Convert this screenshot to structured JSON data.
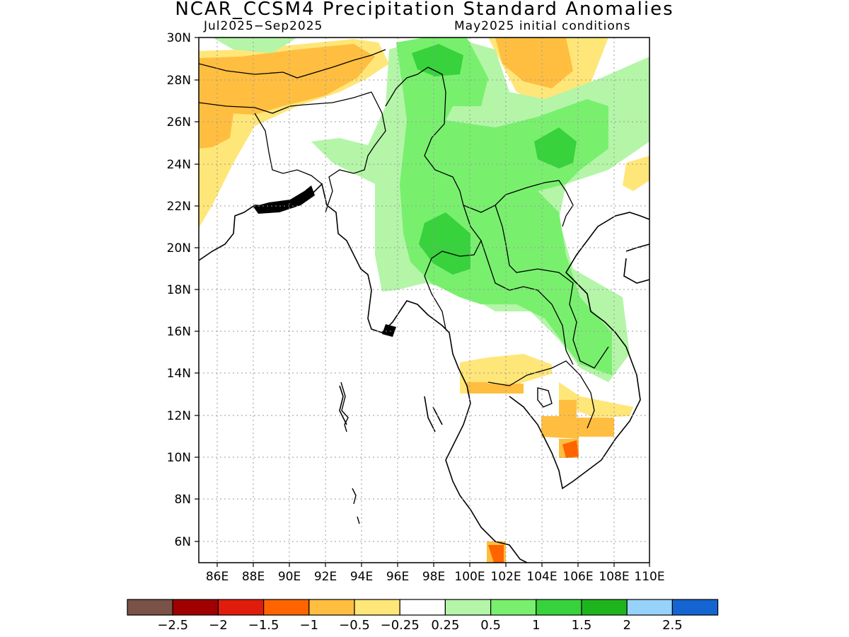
{
  "title": "NCAR_CCSM4 Precipitation Standard Anomalies",
  "subtitle_left": "Jul2025−Sep2025",
  "subtitle_right": "May2025 initial conditions",
  "axes": {
    "lon_labels": [
      "86E",
      "88E",
      "90E",
      "92E",
      "94E",
      "96E",
      "98E",
      "100E",
      "102E",
      "104E",
      "106E",
      "108E",
      "110E"
    ],
    "lat_labels": [
      "30N",
      "28N",
      "26N",
      "24N",
      "22N",
      "20N",
      "18N",
      "16N",
      "14N",
      "12N",
      "10N",
      "8N",
      "6N"
    ]
  },
  "colorbar": {
    "colors": [
      "#7a5248",
      "#a00000",
      "#e01c0c",
      "#ff6400",
      "#ffbe40",
      "#ffe678",
      "#ffffff",
      "#b4f5a8",
      "#78f06e",
      "#37d23c",
      "#1eb41e",
      "#96d2fa",
      "#1464d2"
    ],
    "labels": [
      "−2.5",
      "−2",
      "−1.5",
      "−1",
      "−0.5",
      "−0.25",
      "0.25",
      "0.5",
      "1",
      "1.5",
      "2",
      "2.5"
    ]
  }
}
